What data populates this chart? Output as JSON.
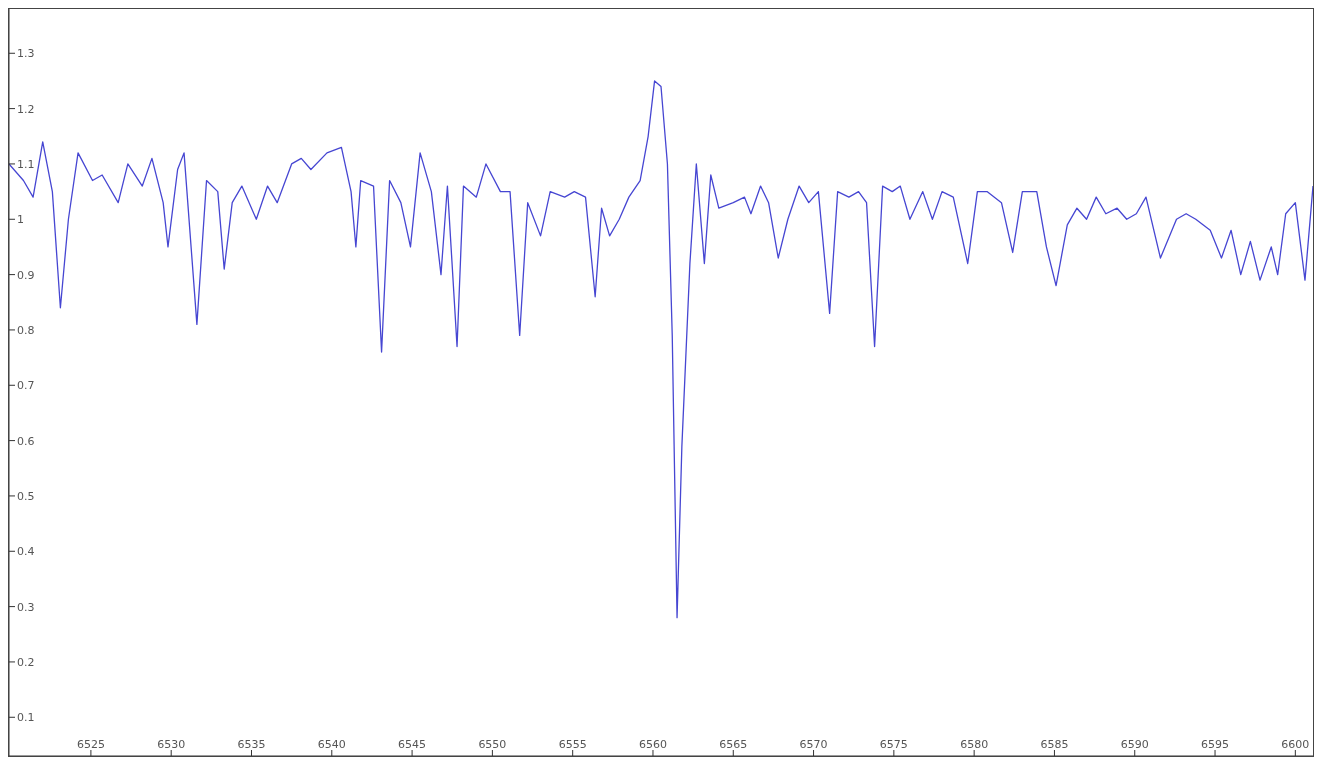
{
  "chart_data": {
    "type": "line",
    "x": [
      6519.9,
      6520.8,
      6521.4,
      6522.0,
      6522.6,
      6523.1,
      6523.6,
      6524.2,
      6525.1,
      6525.7,
      6526.7,
      6527.3,
      6528.2,
      6528.8,
      6529.5,
      6529.8,
      6530.4,
      6530.8,
      6531.6,
      6532.2,
      6532.9,
      6533.3,
      6533.8,
      6534.4,
      6535.3,
      6536.0,
      6536.6,
      6537.5,
      6538.1,
      6538.7,
      6539.7,
      6540.6,
      6541.2,
      6541.5,
      6541.8,
      6542.6,
      6543.1,
      6543.6,
      6544.3,
      6544.9,
      6545.5,
      6546.2,
      6546.8,
      6547.2,
      6547.8,
      6548.2,
      6549.0,
      6549.6,
      6550.5,
      6551.1,
      6551.7,
      6552.2,
      6553.0,
      6553.6,
      6554.5,
      6555.1,
      6555.8,
      6556.4,
      6556.8,
      6557.3,
      6557.9,
      6558.5,
      6559.2,
      6559.7,
      6560.1,
      6560.5,
      6560.9,
      6561.2,
      6561.5,
      6561.8,
      6562.3,
      6562.7,
      6563.2,
      6563.6,
      6564.1,
      6565.0,
      6565.7,
      6566.1,
      6566.7,
      6567.2,
      6567.8,
      6568.4,
      6569.1,
      6569.7,
      6570.3,
      6571.0,
      6571.5,
      6572.2,
      6572.8,
      6573.3,
      6573.8,
      6574.3,
      6574.9,
      6575.4,
      6576.0,
      6576.8,
      6577.4,
      6578.0,
      6578.7,
      6579.6,
      6580.2,
      6580.8,
      6581.7,
      6582.4,
      6583.0,
      6583.9,
      6584.5,
      6585.1,
      6585.8,
      6586.4,
      6587.0,
      6587.6,
      6588.2,
      6588.9,
      6589.5,
      6590.1,
      6590.7,
      6591.6,
      6592.6,
      6593.2,
      6593.8,
      6594.7,
      6595.4,
      6596.0,
      6596.6,
      6597.2,
      6597.8,
      6598.5,
      6598.9,
      6599.4,
      6600.0,
      6600.6,
      6601.1
    ],
    "series": [
      {
        "color": "#4646d2",
        "values": [
          1.1,
          1.07,
          1.04,
          1.14,
          1.05,
          0.84,
          1.0,
          1.12,
          1.07,
          1.08,
          1.03,
          1.1,
          1.06,
          1.11,
          1.03,
          0.95,
          1.09,
          1.12,
          0.81,
          1.07,
          1.05,
          0.91,
          1.03,
          1.06,
          1.0,
          1.06,
          1.03,
          1.1,
          1.11,
          1.09,
          1.12,
          1.13,
          1.05,
          0.95,
          1.07,
          1.06,
          0.76,
          1.07,
          1.03,
          0.95,
          1.12,
          1.05,
          0.9,
          1.06,
          0.77,
          1.06,
          1.04,
          1.1,
          1.05,
          1.05,
          0.79,
          1.03,
          0.97,
          1.05,
          1.04,
          1.05,
          1.04,
          0.86,
          1.02,
          0.97,
          1.0,
          1.04,
          1.07,
          1.15,
          1.25,
          1.24,
          1.1,
          0.79,
          0.28,
          0.59,
          0.92,
          1.1,
          0.92,
          1.08,
          1.02,
          1.03,
          1.04,
          1.01,
          1.06,
          1.03,
          0.93,
          1.0,
          1.06,
          1.03,
          1.05,
          0.83,
          1.05,
          1.04,
          1.05,
          1.03,
          0.77,
          1.06,
          1.05,
          1.06,
          1.0,
          1.05,
          1.0,
          1.05,
          1.04,
          0.92,
          1.05,
          1.05,
          1.03,
          0.94,
          1.05,
          1.05,
          0.95,
          0.88,
          0.99,
          1.02,
          1.0,
          1.04,
          1.01,
          1.02,
          1.0,
          1.01,
          1.04,
          0.93,
          1.0,
          1.01,
          1.0,
          0.98,
          0.93,
          0.98,
          0.9,
          0.96,
          0.89,
          0.95,
          0.9,
          1.01,
          1.03,
          0.89,
          1.06
        ]
      }
    ],
    "xlim": [
      6519.9,
      6601.1
    ],
    "xticks": [
      6525,
      6530,
      6535,
      6540,
      6545,
      6550,
      6555,
      6560,
      6565,
      6570,
      6575,
      6580,
      6585,
      6590,
      6595,
      6600
    ],
    "ylim": [
      0.03,
      1.38
    ],
    "yticks": [
      0.1,
      0.2,
      0.3,
      0.4,
      0.5,
      0.6,
      0.7,
      0.8,
      0.9,
      1,
      1.1,
      1.2,
      1.3
    ],
    "grid": false,
    "legend": false,
    "marker": "none",
    "line_style": "solid"
  }
}
